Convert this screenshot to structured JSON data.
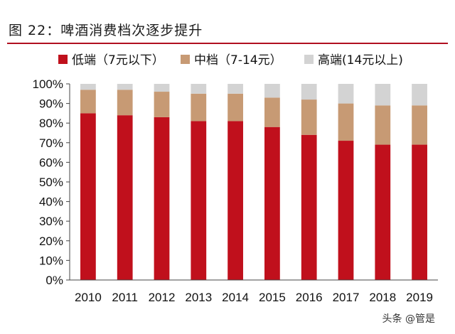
{
  "header": {
    "title": "图 22：啤酒消费档次逐步提升"
  },
  "watermark": "头条 @管是",
  "chart_data": {
    "type": "bar",
    "stacked": true,
    "categories": [
      "2010",
      "2011",
      "2012",
      "2013",
      "2014",
      "2015",
      "2016",
      "2017",
      "2018",
      "2019"
    ],
    "series": [
      {
        "name": "低端（7元以下）",
        "color": "#c0101c",
        "values": [
          85,
          84,
          83,
          81,
          81,
          78,
          74,
          71,
          69,
          69
        ]
      },
      {
        "name": "中档（7-14元）",
        "color": "#c79a74",
        "values": [
          12,
          13,
          13,
          14,
          14,
          15,
          18,
          19,
          20,
          20
        ]
      },
      {
        "name": "高端(14元以上)",
        "color": "#d3d3d3",
        "values": [
          3,
          3,
          4,
          5,
          5,
          7,
          8,
          10,
          11,
          11
        ]
      }
    ],
    "ylim": [
      0,
      100
    ],
    "yticks": [
      "0%",
      "10%",
      "20%",
      "30%",
      "40%",
      "50%",
      "60%",
      "70%",
      "80%",
      "90%",
      "100%"
    ],
    "legend_position": "top",
    "grid": false
  }
}
